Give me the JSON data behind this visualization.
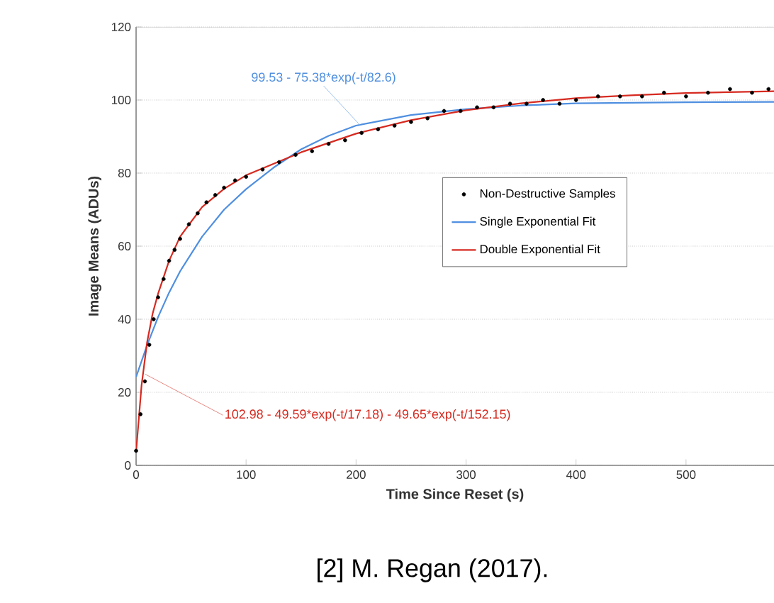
{
  "chart_data": {
    "type": "line",
    "xlabel": "Time Since Reset  (s)",
    "ylabel": "Image Means (ADUs)",
    "xlim": [
      0,
      580
    ],
    "ylim": [
      0,
      120
    ],
    "xticks": [
      0,
      100,
      200,
      300,
      400,
      500
    ],
    "yticks": [
      0,
      20,
      40,
      60,
      80,
      100,
      120
    ],
    "grid": "y",
    "legend": "right",
    "series": [
      {
        "name": "Non-Destructive Samples",
        "type": "scatter",
        "marker": "circle",
        "color": "#000000",
        "x": [
          0,
          4,
          8,
          12,
          16,
          20,
          25,
          30,
          35,
          40,
          48,
          56,
          64,
          72,
          80,
          90,
          100,
          115,
          130,
          145,
          160,
          175,
          190,
          205,
          220,
          235,
          250,
          265,
          280,
          295,
          310,
          325,
          340,
          355,
          370,
          385,
          400,
          420,
          440,
          460,
          480,
          500,
          520,
          540,
          560,
          575
        ],
        "values": [
          4,
          14,
          23,
          33,
          40,
          46,
          51,
          56,
          59,
          62,
          66,
          69,
          72,
          74,
          76,
          78,
          79,
          81,
          83,
          85,
          86,
          88,
          89,
          91,
          92,
          93,
          94,
          95,
          97,
          97,
          98,
          98,
          99,
          99,
          100,
          99,
          100,
          101,
          101,
          101,
          102,
          101,
          102,
          103,
          102,
          103
        ]
      },
      {
        "name": "Single Exponential Fit",
        "color": "#4f8fe0",
        "x": [
          0,
          10,
          20,
          30,
          40,
          60,
          80,
          100,
          125,
          150,
          175,
          200,
          250,
          300,
          350,
          400,
          500,
          580
        ],
        "values": [
          24.2,
          32.9,
          40.6,
          47.3,
          53.1,
          62.6,
          70.0,
          75.6,
          81.5,
          86.5,
          90.2,
          93.0,
          95.9,
          97.5,
          98.5,
          99.1,
          99.4,
          99.5
        ]
      },
      {
        "name": "Double Exponential Fit",
        "color": "#d62a20",
        "x": [
          0,
          5,
          10,
          15,
          20,
          30,
          40,
          60,
          80,
          100,
          150,
          200,
          250,
          300,
          350,
          400,
          450,
          500,
          580
        ],
        "values": [
          3.7,
          22,
          33.7,
          41.5,
          47,
          56,
          62.6,
          70.7,
          75.7,
          79.4,
          85.7,
          90.8,
          94.5,
          97.2,
          99.1,
          100.5,
          101.3,
          101.9,
          102.4
        ]
      }
    ],
    "annotations": [
      {
        "text": "99.53 - 75.38*exp(-t/82.6)",
        "x": 204,
        "y": 93
      },
      {
        "text": "102.98 - 49.59*exp(-t/17.18) - 49.65*exp(-t/152.15)",
        "x": 8,
        "y": 25
      },
      "[2] M. Regan (2017)."
    ]
  }
}
